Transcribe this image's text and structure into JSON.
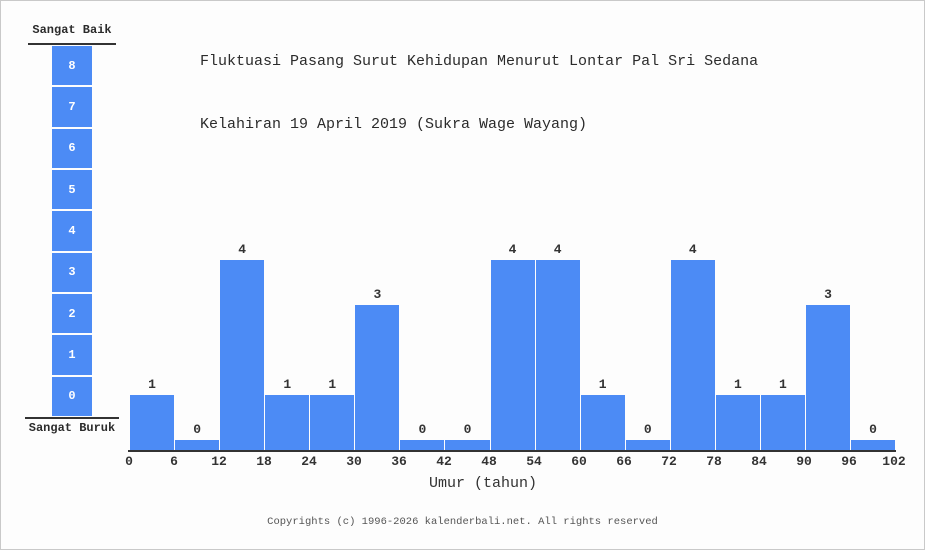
{
  "page": {
    "background": "#fdfdfd",
    "border_color": "#c9c9c9",
    "text_color": "#2b2b2b"
  },
  "title": {
    "line1": "Fluktuasi Pasang Surut Kehidupan Menurut Lontar Pal Sri Sedana",
    "line2": "Kelahiran 19 April 2019 (Sukra Wage Wayang)"
  },
  "scale": {
    "top_label": "Sangat Baik",
    "bottom_label": "Sangat Buruk",
    "levels": [
      8,
      7,
      6,
      5,
      4,
      3,
      2,
      1,
      0
    ]
  },
  "chart_data": {
    "type": "bar",
    "title": "Fluktuasi Pasang Surut Kehidupan Menurut Lontar Pal Sri Sedana Kelahiran 19 April 2019 (Sukra Wage Wayang)",
    "xlabel": "Umur (tahun)",
    "ylabel": "",
    "categories": [
      "0-6",
      "6-12",
      "12-18",
      "18-24",
      "24-30",
      "30-36",
      "36-42",
      "42-48",
      "48-54",
      "54-60",
      "60-66",
      "66-72",
      "72-78",
      "78-84",
      "84-90",
      "90-96",
      "96-102"
    ],
    "values": [
      1,
      0,
      4,
      1,
      1,
      3,
      0,
      0,
      4,
      4,
      1,
      0,
      4,
      1,
      1,
      3,
      0
    ],
    "x_ticks": [
      0,
      6,
      12,
      18,
      24,
      30,
      36,
      42,
      48,
      54,
      60,
      66,
      72,
      78,
      84,
      90,
      96,
      102
    ],
    "ylim": [
      0,
      8
    ],
    "bin_width": 6,
    "bar_color": "#4c8bf5",
    "axis_color": "#333333",
    "grid": false,
    "legend": "none",
    "value_labels_shown": true,
    "scale_labels": {
      "max": "Sangat Baik",
      "min": "Sangat Buruk"
    }
  },
  "footer": {
    "copyright": "Copyrights (c) 1996-2026 kalenderbali.net. All rights reserved"
  }
}
